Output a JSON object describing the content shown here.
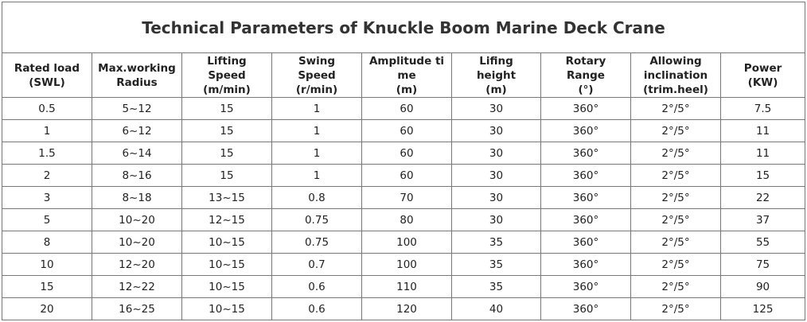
{
  "title": "Technical Parameters of Knuckle Boom Marine Deck Crane",
  "columns": [
    [
      "Rated load",
      "(SWL)"
    ],
    [
      "Max.working",
      "Radius"
    ],
    [
      "Lifting",
      "Speed",
      "(m/min)"
    ],
    [
      "Swing",
      "Speed",
      "(r/min)"
    ],
    [
      "Amplitude  ti",
      "me",
      "(m)"
    ],
    [
      "Lifing",
      "height",
      "(m)"
    ],
    [
      "Rotary",
      "Range",
      "(°)"
    ],
    [
      "Allowing",
      "inclination",
      "(trim.heel)"
    ],
    [
      "Power",
      "(KW)"
    ]
  ],
  "rows": [
    [
      "0.5",
      "5~12",
      "15",
      "1",
      "60",
      "30",
      "360°",
      "2°/5°",
      "7.5"
    ],
    [
      "1",
      "6~12",
      "15",
      "1",
      "60",
      "30",
      "360°",
      "2°/5°",
      "11"
    ],
    [
      "1.5",
      "6~14",
      "15",
      "1",
      "60",
      "30",
      "360°",
      "2°/5°",
      "11"
    ],
    [
      "2",
      "8~16",
      "15",
      "1",
      "60",
      "30",
      "360°",
      "2°/5°",
      "15"
    ],
    [
      "3",
      "8~18",
      "13~15",
      "0.8",
      "70",
      "30",
      "360°",
      "2°/5°",
      "22"
    ],
    [
      "5",
      "10~20",
      "12~15",
      "0.75",
      "80",
      "30",
      "360°",
      "2°/5°",
      "37"
    ],
    [
      "8",
      "10~20",
      "10~15",
      "0.75",
      "100",
      "35",
      "360°",
      "2°/5°",
      "55"
    ],
    [
      "10",
      "12~20",
      "10~15",
      "0.7",
      "100",
      "35",
      "360°",
      "2°/5°",
      "75"
    ],
    [
      "15",
      "12~22",
      "10~15",
      "0.6",
      "110",
      "35",
      "360°",
      "2°/5°",
      "90"
    ],
    [
      "20",
      "16~25",
      "10~15",
      "0.6",
      "120",
      "40",
      "360°",
      "2°/5°",
      "125"
    ]
  ]
}
